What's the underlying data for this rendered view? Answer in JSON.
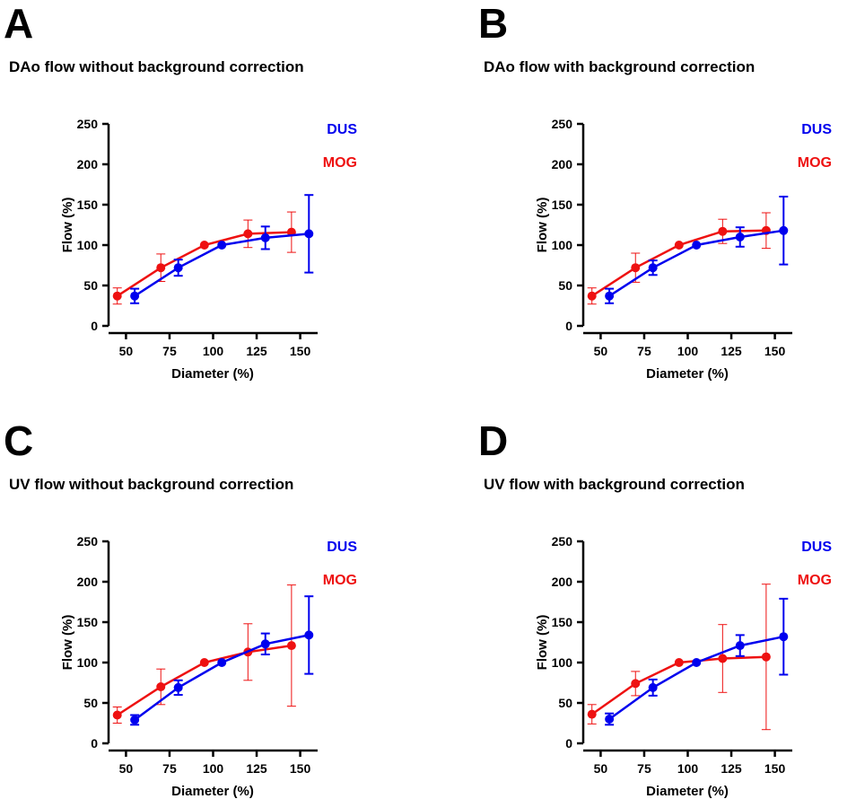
{
  "colors": {
    "dus": "#0000ee",
    "mog": "#ee1111",
    "axis": "#000000"
  },
  "chart_data": [
    {
      "panel": "A",
      "type": "line",
      "title": "DAo flow without background correction",
      "xlabel": "Diameter (%)",
      "ylabel": "Flow (%)",
      "xticks": [
        50,
        75,
        100,
        125,
        150
      ],
      "yticks": [
        0,
        50,
        100,
        150,
        200,
        250
      ],
      "ylim": [
        0,
        250
      ],
      "legend": "right",
      "series": [
        {
          "name": "DUS",
          "color_key": "dus",
          "points": [
            {
              "x": 55,
              "y": 37,
              "err": 9
            },
            {
              "x": 80,
              "y": 72,
              "err": 10
            },
            {
              "x": 105,
              "y": 100,
              "err": 0
            },
            {
              "x": 130,
              "y": 109,
              "err": 14
            },
            {
              "x": 155,
              "y": 114,
              "err": 48
            }
          ]
        },
        {
          "name": "MOG",
          "color_key": "mog",
          "points": [
            {
              "x": 45,
              "y": 37,
              "err": 10
            },
            {
              "x": 70,
              "y": 72,
              "err": 17
            },
            {
              "x": 95,
              "y": 100,
              "err": 0
            },
            {
              "x": 120,
              "y": 114,
              "err": 17
            },
            {
              "x": 145,
              "y": 116,
              "err": 25
            }
          ]
        }
      ]
    },
    {
      "panel": "B",
      "type": "line",
      "title": "DAo flow with background correction",
      "xlabel": "Diameter (%)",
      "ylabel": "Flow (%)",
      "xticks": [
        50,
        75,
        100,
        125,
        150
      ],
      "yticks": [
        0,
        50,
        100,
        150,
        200,
        250
      ],
      "ylim": [
        0,
        250
      ],
      "legend": "right",
      "series": [
        {
          "name": "DUS",
          "color_key": "dus",
          "points": [
            {
              "x": 55,
              "y": 37,
              "err": 9
            },
            {
              "x": 80,
              "y": 72,
              "err": 9
            },
            {
              "x": 105,
              "y": 100,
              "err": 0
            },
            {
              "x": 130,
              "y": 110,
              "err": 12
            },
            {
              "x": 155,
              "y": 118,
              "err": 42
            }
          ]
        },
        {
          "name": "MOG",
          "color_key": "mog",
          "points": [
            {
              "x": 45,
              "y": 37,
              "err": 10
            },
            {
              "x": 70,
              "y": 72,
              "err": 18
            },
            {
              "x": 95,
              "y": 100,
              "err": 0
            },
            {
              "x": 120,
              "y": 117,
              "err": 15
            },
            {
              "x": 145,
              "y": 118,
              "err": 22
            }
          ]
        }
      ]
    },
    {
      "panel": "C",
      "type": "line",
      "title": "UV flow without background correction",
      "xlabel": "Diameter (%)",
      "ylabel": "Flow (%)",
      "xticks": [
        50,
        75,
        100,
        125,
        150
      ],
      "yticks": [
        0,
        50,
        100,
        150,
        200,
        250
      ],
      "ylim": [
        0,
        250
      ],
      "legend": "right",
      "series": [
        {
          "name": "DUS",
          "color_key": "dus",
          "points": [
            {
              "x": 55,
              "y": 29,
              "err": 6
            },
            {
              "x": 80,
              "y": 69,
              "err": 9
            },
            {
              "x": 105,
              "y": 100,
              "err": 0
            },
            {
              "x": 130,
              "y": 123,
              "err": 13
            },
            {
              "x": 155,
              "y": 134,
              "err": 48
            }
          ]
        },
        {
          "name": "MOG",
          "color_key": "mog",
          "points": [
            {
              "x": 45,
              "y": 35,
              "err": 10
            },
            {
              "x": 70,
              "y": 70,
              "err": 22
            },
            {
              "x": 95,
              "y": 100,
              "err": 0
            },
            {
              "x": 120,
              "y": 113,
              "err": 35
            },
            {
              "x": 145,
              "y": 121,
              "err": 75
            }
          ]
        }
      ]
    },
    {
      "panel": "D",
      "type": "line",
      "title": "UV flow with background correction",
      "xlabel": "Diameter (%)",
      "ylabel": "Flow (%)",
      "xticks": [
        50,
        75,
        100,
        125,
        150
      ],
      "yticks": [
        0,
        50,
        100,
        150,
        200,
        250
      ],
      "ylim": [
        0,
        250
      ],
      "legend": "right",
      "series": [
        {
          "name": "DUS",
          "color_key": "dus",
          "points": [
            {
              "x": 55,
              "y": 30,
              "err": 7
            },
            {
              "x": 80,
              "y": 69,
              "err": 10
            },
            {
              "x": 105,
              "y": 100,
              "err": 0
            },
            {
              "x": 130,
              "y": 121,
              "err": 13
            },
            {
              "x": 155,
              "y": 132,
              "err": 47
            }
          ]
        },
        {
          "name": "MOG",
          "color_key": "mog",
          "points": [
            {
              "x": 45,
              "y": 36,
              "err": 12
            },
            {
              "x": 70,
              "y": 74,
              "err": 15
            },
            {
              "x": 95,
              "y": 100,
              "err": 0
            },
            {
              "x": 120,
              "y": 105,
              "err": 42
            },
            {
              "x": 145,
              "y": 107,
              "err": 90
            }
          ]
        }
      ]
    }
  ]
}
